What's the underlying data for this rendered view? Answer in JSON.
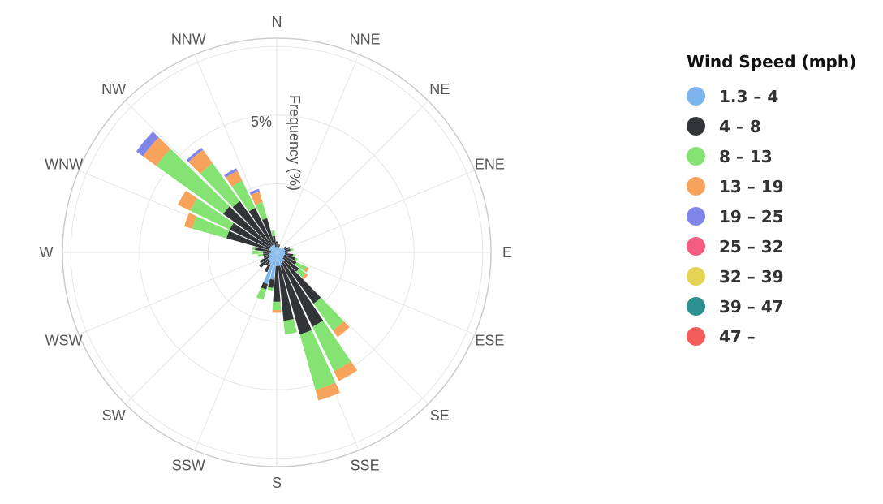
{
  "chart_data": {
    "type": "windrose",
    "radial_axis_title": "Frequency (%)",
    "radial_tick_label": "5%",
    "radial_tick_value": 5,
    "radial_max": 7.8,
    "grid_rings": [
      2.5,
      5,
      7.5
    ],
    "grid": true,
    "legend_position": "right",
    "legend_title": "Wind Speed (mph)",
    "directions": [
      "N",
      "NNE",
      "NE",
      "ENE",
      "E",
      "ESE",
      "SE",
      "SSE",
      "S",
      "SSW",
      "SW",
      "WSW",
      "W",
      "WNW",
      "NW",
      "NNW"
    ],
    "bins_per_direction": 36,
    "series": [
      {
        "name": "1.3 – 4",
        "color": "#7cb5ec"
      },
      {
        "name": "4 – 8",
        "color": "#333438"
      },
      {
        "name": "8 – 13",
        "color": "#85e374"
      },
      {
        "name": "13 – 19",
        "color": "#f7a35c"
      },
      {
        "name": "19 – 25",
        "color": "#8085e9"
      },
      {
        "name": "25 – 32",
        "color": "#f15c80"
      },
      {
        "name": "32 – 39",
        "color": "#e4d354"
      },
      {
        "name": "39 – 47",
        "color": "#2b908f"
      },
      {
        "name": "47 –",
        "color": "#f45b5b"
      }
    ],
    "sectors": [
      {
        "angle": 0,
        "values": [
          0.2,
          0.2,
          0.0,
          0.0,
          0.0
        ]
      },
      {
        "angle": 10,
        "values": [
          0.2,
          0.1,
          0.0,
          0.0,
          0.0
        ]
      },
      {
        "angle": 20,
        "values": [
          0.2,
          0.1,
          0.0,
          0.0,
          0.0
        ]
      },
      {
        "angle": 30,
        "values": [
          0.2,
          0.0,
          0.0,
          0.0,
          0.0
        ]
      },
      {
        "angle": 40,
        "values": [
          0.2,
          0.0,
          0.0,
          0.0,
          0.0
        ]
      },
      {
        "angle": 50,
        "values": [
          0.2,
          0.0,
          0.0,
          0.0,
          0.0
        ]
      },
      {
        "angle": 60,
        "values": [
          0.3,
          0.1,
          0.0,
          0.0,
          0.0
        ]
      },
      {
        "angle": 70,
        "values": [
          0.3,
          0.2,
          0.0,
          0.0,
          0.0
        ]
      },
      {
        "angle": 80,
        "values": [
          0.3,
          0.2,
          0.1,
          0.0,
          0.0
        ]
      },
      {
        "angle": 90,
        "values": [
          0.3,
          0.1,
          0.0,
          0.0,
          0.0
        ]
      },
      {
        "angle": 100,
        "values": [
          0.3,
          0.3,
          0.1,
          0.0,
          0.0
        ]
      },
      {
        "angle": 110,
        "values": [
          0.3,
          0.4,
          0.1,
          0.0,
          0.0
        ]
      },
      {
        "angle": 120,
        "values": [
          0.3,
          0.5,
          0.4,
          0.1,
          0.0
        ]
      },
      {
        "angle": 130,
        "values": [
          0.3,
          0.7,
          0.3,
          0.1,
          0.0
        ]
      },
      {
        "angle": 140,
        "values": [
          0.4,
          1.9,
          1.2,
          0.3,
          0.0
        ]
      },
      {
        "angle": 150,
        "values": [
          0.4,
          2.6,
          1.8,
          0.4,
          0.0
        ]
      },
      {
        "angle": 160,
        "values": [
          0.5,
          2.6,
          2.1,
          0.4,
          0.0
        ]
      },
      {
        "angle": 170,
        "values": [
          0.5,
          2.0,
          0.5,
          0.0,
          0.0
        ]
      },
      {
        "angle": 180,
        "values": [
          0.5,
          1.3,
          0.3,
          0.1,
          0.0
        ]
      },
      {
        "angle": 190,
        "values": [
          1.0,
          0.3,
          0.1,
          0.0,
          0.0
        ]
      },
      {
        "angle": 200,
        "values": [
          1.2,
          0.2,
          0.4,
          0.0,
          0.0
        ]
      },
      {
        "angle": 210,
        "values": [
          0.5,
          0.3,
          0.0,
          0.0,
          0.0
        ]
      },
      {
        "angle": 220,
        "values": [
          0.4,
          0.2,
          0.0,
          0.0,
          0.0
        ]
      },
      {
        "angle": 230,
        "values": [
          0.4,
          0.4,
          0.0,
          0.0,
          0.0
        ]
      },
      {
        "angle": 240,
        "values": [
          0.3,
          0.4,
          0.0,
          0.0,
          0.0
        ]
      },
      {
        "angle": 250,
        "values": [
          0.3,
          0.2,
          0.0,
          0.0,
          0.0
        ]
      },
      {
        "angle": 260,
        "values": [
          0.3,
          0.2,
          0.2,
          0.0,
          0.0
        ]
      },
      {
        "angle": 270,
        "values": [
          0.2,
          0.3,
          0.4,
          0.0,
          0.0
        ]
      },
      {
        "angle": 280,
        "values": [
          0.2,
          0.6,
          0.1,
          0.0,
          0.0
        ]
      },
      {
        "angle": 290,
        "values": [
          0.3,
          1.6,
          1.3,
          0.3,
          0.0
        ]
      },
      {
        "angle": 300,
        "values": [
          0.3,
          1.6,
          1.6,
          0.5,
          0.0
        ]
      },
      {
        "angle": 310,
        "values": [
          0.3,
          2.1,
          3.0,
          0.6,
          0.3
        ]
      },
      {
        "angle": 320,
        "values": [
          0.3,
          2.0,
          1.7,
          0.6,
          0.1
        ]
      },
      {
        "angle": 330,
        "values": [
          0.3,
          1.5,
          1.1,
          0.4,
          0.1
        ]
      },
      {
        "angle": 340,
        "values": [
          0.3,
          1.0,
          0.6,
          0.4,
          0.1
        ]
      },
      {
        "angle": 350,
        "values": [
          0.2,
          0.4,
          0.2,
          0.0,
          0.0
        ]
      }
    ]
  }
}
